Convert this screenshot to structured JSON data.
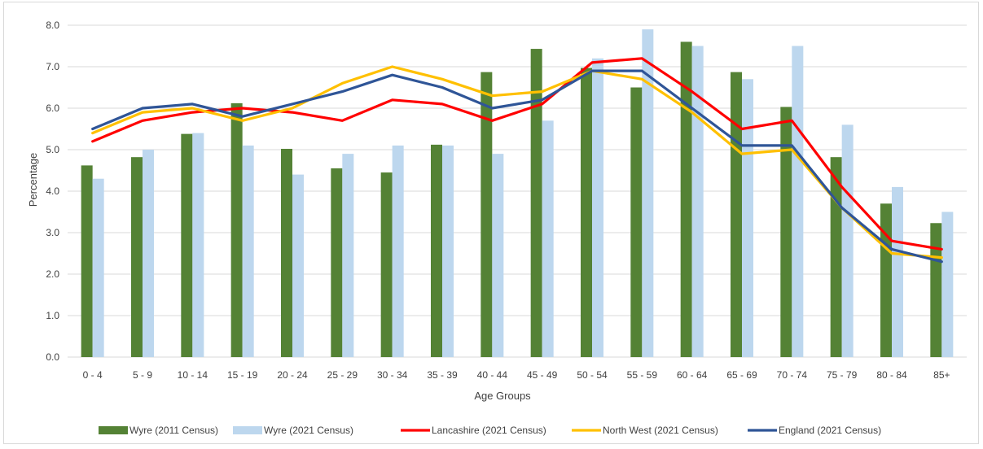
{
  "chart_data": {
    "type": "bar",
    "title": "",
    "xlabel": "Age Groups",
    "ylabel": "Percentage",
    "ylim": [
      0,
      8
    ],
    "yticks": [
      "0.0",
      "1.0",
      "2.0",
      "3.0",
      "4.0",
      "5.0",
      "6.0",
      "7.0",
      "8.0"
    ],
    "grid": true,
    "legend_position": "bottom",
    "categories": [
      "0 - 4",
      "5 - 9",
      "10 - 14",
      "15 - 19",
      "20 - 24",
      "25 - 29",
      "30 - 34",
      "35 - 39",
      "40 - 44",
      "45 - 49",
      "50 - 54",
      "55 - 59",
      "60 - 64",
      "65 - 69",
      "70 - 74",
      "75 - 79",
      "80 - 84",
      "85+"
    ],
    "series": [
      {
        "name": "Wyre (2011 Census)",
        "kind": "bar",
        "color": "#548235",
        "values": [
          4.62,
          4.82,
          5.38,
          6.12,
          5.02,
          4.55,
          4.45,
          5.12,
          6.87,
          7.43,
          6.97,
          6.5,
          7.6,
          6.87,
          6.03,
          4.82,
          3.7,
          3.23
        ]
      },
      {
        "name": "Wyre (2021 Census)",
        "kind": "bar",
        "color": "#bdd7ee",
        "values": [
          4.3,
          5.0,
          5.4,
          5.1,
          4.4,
          4.9,
          5.1,
          5.1,
          4.9,
          5.7,
          7.2,
          7.9,
          7.5,
          6.7,
          7.5,
          5.6,
          4.1,
          3.5
        ]
      },
      {
        "name": "Lancashire (2021 Census)",
        "kind": "line",
        "color": "#ff0000",
        "values": [
          5.2,
          5.7,
          5.9,
          6.0,
          5.9,
          5.7,
          6.2,
          6.1,
          5.7,
          6.1,
          7.1,
          7.2,
          6.4,
          5.5,
          5.7,
          4.1,
          2.8,
          2.6
        ]
      },
      {
        "name": "North West (2021 Census)",
        "kind": "line",
        "color": "#ffc000",
        "values": [
          5.4,
          5.9,
          6.0,
          5.7,
          6.0,
          6.6,
          7.0,
          6.7,
          6.3,
          6.4,
          6.9,
          6.7,
          5.9,
          4.9,
          5.0,
          3.6,
          2.5,
          2.4
        ]
      },
      {
        "name": "England (2021 Census)",
        "kind": "line",
        "color": "#2f5597",
        "values": [
          5.5,
          6.0,
          6.1,
          5.8,
          6.1,
          6.4,
          6.8,
          6.5,
          6.0,
          6.2,
          6.9,
          6.9,
          6.0,
          5.1,
          5.1,
          3.6,
          2.6,
          2.3
        ]
      }
    ]
  }
}
